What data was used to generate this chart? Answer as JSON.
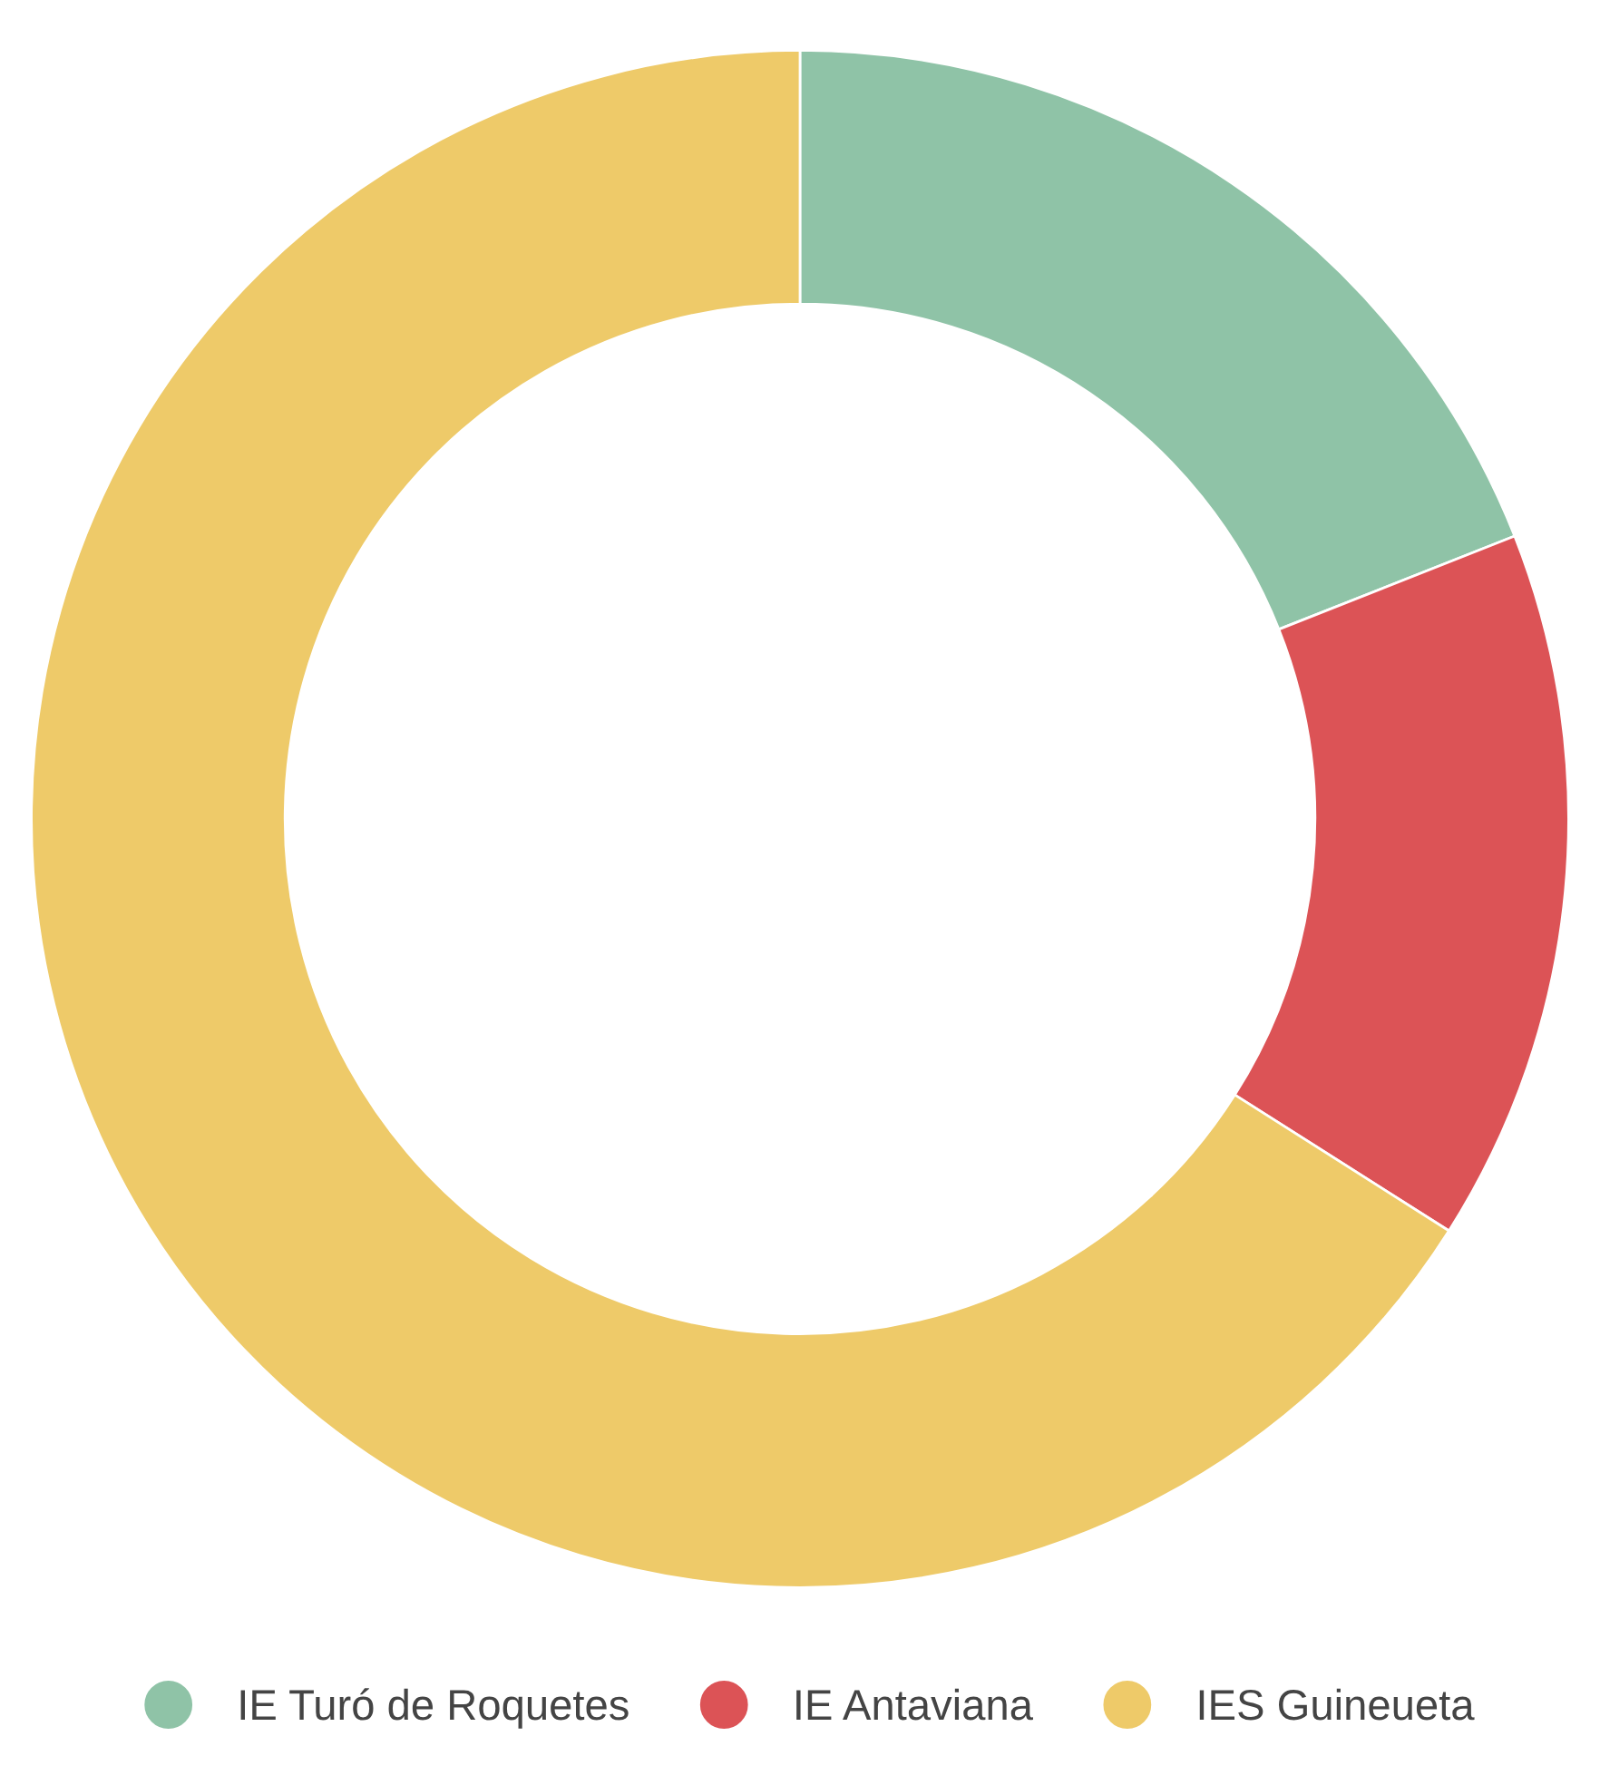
{
  "chart_data": {
    "type": "donut",
    "categories": [
      "IE Turó de Roquetes",
      "IE Antaviana",
      "IES Guineueta"
    ],
    "values": [
      19,
      15,
      66
    ],
    "colors": [
      "#8fc3a7",
      "#dc5356",
      "#eeca69"
    ],
    "legend": "bottom"
  }
}
